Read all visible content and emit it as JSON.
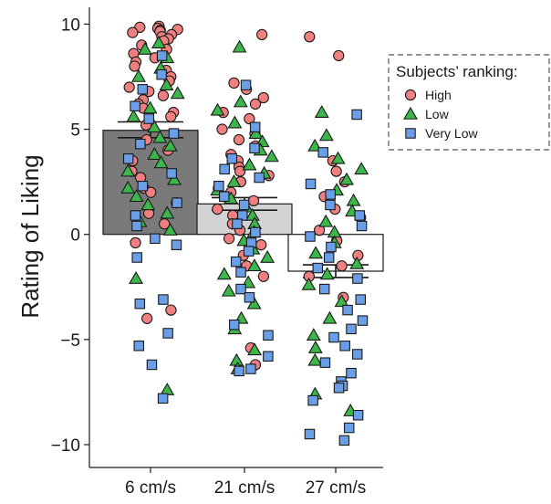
{
  "chart_data": {
    "type": "bar",
    "ylabel": "Rating of Liking",
    "ylim": [
      -11,
      10.8
    ],
    "yticks": [
      10,
      5,
      0,
      -5,
      -10
    ],
    "ytick_labels": [
      "10",
      "5",
      "0",
      "−5",
      "−10"
    ],
    "categories": [
      "6 cm/s",
      "21 cm/s",
      "27 cm/s"
    ],
    "bars": [
      {
        "category": "6 cm/s",
        "mean": 4.95,
        "err_low": 4.6,
        "err_high": 5.35,
        "fill": "#7a7a7a"
      },
      {
        "category": "21 cm/s",
        "mean": 1.45,
        "err_low": 1.15,
        "err_high": 1.75,
        "fill": "#d3d3d3"
      },
      {
        "category": "27 cm/s",
        "mean": -1.75,
        "err_low": -2.05,
        "err_high": -1.45,
        "fill": "#ffffff"
      }
    ],
    "legend": {
      "title": "Subjects’ ranking:",
      "position": "top-right",
      "entries": [
        {
          "label": "High",
          "marker": "circle",
          "color": "#f08080"
        },
        {
          "label": "Low",
          "marker": "triangle",
          "color": "#3cb54a"
        },
        {
          "label": "Very Low",
          "marker": "square",
          "color": "#6a9fe8"
        }
      ]
    },
    "series": [
      {
        "name": "High",
        "marker": "circle",
        "color": "#f08080",
        "points": [
          [
            0,
            9.9
          ],
          [
            0,
            9.85
          ],
          [
            0,
            9.8
          ],
          [
            0,
            9.75
          ],
          [
            0,
            9.7
          ],
          [
            0,
            9.65
          ],
          [
            0,
            9.6
          ],
          [
            0,
            9.5
          ],
          [
            0,
            9.4
          ],
          [
            0,
            9.3
          ],
          [
            0,
            9.2
          ],
          [
            0,
            9.0
          ],
          [
            0,
            8.8
          ],
          [
            0,
            8.6
          ],
          [
            0,
            8.4
          ],
          [
            0,
            8.2
          ],
          [
            0,
            8.0
          ],
          [
            0,
            7.8
          ],
          [
            0,
            7.5
          ],
          [
            0,
            7.3
          ],
          [
            0,
            7.0
          ],
          [
            0,
            6.8
          ],
          [
            0,
            6.6
          ],
          [
            0,
            6.4
          ],
          [
            0,
            6.2
          ],
          [
            0,
            6.0
          ],
          [
            0,
            5.8
          ],
          [
            0,
            5.6
          ],
          [
            0,
            5.2
          ],
          [
            0,
            4.5
          ],
          [
            0,
            4.0
          ],
          [
            0,
            3.5
          ],
          [
            0,
            3.0
          ],
          [
            0,
            2.7
          ],
          [
            0,
            2.2
          ],
          [
            0,
            2.0
          ],
          [
            0,
            1.5
          ],
          [
            0,
            1.0
          ],
          [
            0,
            0.5
          ],
          [
            0,
            -0.4
          ],
          [
            0,
            -4.0
          ],
          [
            0,
            -3.6
          ],
          [
            1,
            9.5
          ],
          [
            1,
            7.2
          ],
          [
            1,
            6.9
          ],
          [
            1,
            6.5
          ],
          [
            1,
            6.2
          ],
          [
            1,
            5.8
          ],
          [
            1,
            5.5
          ],
          [
            1,
            5.0
          ],
          [
            1,
            4.8
          ],
          [
            1,
            4.5
          ],
          [
            1,
            4.2
          ],
          [
            1,
            3.8
          ],
          [
            1,
            3.5
          ],
          [
            1,
            3.2
          ],
          [
            1,
            3.0
          ],
          [
            1,
            2.8
          ],
          [
            1,
            2.5
          ],
          [
            1,
            2.2
          ],
          [
            1,
            2.0
          ],
          [
            1,
            1.8
          ],
          [
            1,
            1.6
          ],
          [
            1,
            1.2
          ],
          [
            1,
            0.9
          ],
          [
            1,
            0.5
          ],
          [
            1,
            0.2
          ],
          [
            1,
            -0.2
          ],
          [
            1,
            -0.5
          ],
          [
            1,
            -1.0
          ],
          [
            1,
            -1.5
          ],
          [
            1,
            -2.0
          ],
          [
            1,
            -5.4
          ],
          [
            1,
            -6.2
          ],
          [
            2,
            9.4
          ],
          [
            2,
            8.5
          ],
          [
            2,
            3.5
          ],
          [
            2,
            3.0
          ],
          [
            2,
            2.5
          ],
          [
            2,
            1.8
          ],
          [
            2,
            1.2
          ],
          [
            2,
            0.8
          ],
          [
            2,
            0.2
          ],
          [
            2,
            -0.3
          ],
          [
            2,
            -1.0
          ],
          [
            2,
            -1.5
          ],
          [
            2,
            -2.0
          ],
          [
            2,
            -3.0
          ]
        ]
      },
      {
        "name": "Low",
        "marker": "triangle",
        "color": "#3cb54a",
        "points": [
          [
            0,
            9.1
          ],
          [
            0,
            8.8
          ],
          [
            0,
            8.4
          ],
          [
            0,
            7.9
          ],
          [
            0,
            7.5
          ],
          [
            0,
            7.1
          ],
          [
            0,
            6.7
          ],
          [
            0,
            6.0
          ],
          [
            0,
            5.6
          ],
          [
            0,
            5.1
          ],
          [
            0,
            4.6
          ],
          [
            0,
            4.2
          ],
          [
            0,
            3.8
          ],
          [
            0,
            3.4
          ],
          [
            0,
            3.0
          ],
          [
            0,
            2.6
          ],
          [
            0,
            2.2
          ],
          [
            0,
            1.8
          ],
          [
            0,
            1.4
          ],
          [
            0,
            1.0
          ],
          [
            0,
            0.6
          ],
          [
            0,
            0.2
          ],
          [
            0,
            -2.1
          ],
          [
            0,
            -7.4
          ],
          [
            1,
            8.9
          ],
          [
            1,
            6.3
          ],
          [
            1,
            5.9
          ],
          [
            1,
            5.3
          ],
          [
            1,
            4.8
          ],
          [
            1,
            4.4
          ],
          [
            1,
            4.0
          ],
          [
            1,
            3.7
          ],
          [
            1,
            3.3
          ],
          [
            1,
            2.9
          ],
          [
            1,
            2.5
          ],
          [
            1,
            2.1
          ],
          [
            1,
            1.7
          ],
          [
            1,
            1.3
          ],
          [
            1,
            0.9
          ],
          [
            1,
            0.5
          ],
          [
            1,
            0.1
          ],
          [
            1,
            -0.3
          ],
          [
            1,
            -0.7
          ],
          [
            1,
            -1.1
          ],
          [
            1,
            -1.5
          ],
          [
            1,
            -1.9
          ],
          [
            1,
            -2.3
          ],
          [
            1,
            -2.7
          ],
          [
            1,
            -3.3
          ],
          [
            1,
            -4.0
          ],
          [
            1,
            -4.5
          ],
          [
            1,
            -5.5
          ],
          [
            1,
            -6.0
          ],
          [
            1,
            -6.4
          ],
          [
            2,
            5.8
          ],
          [
            2,
            4.7
          ],
          [
            2,
            4.2
          ],
          [
            2,
            3.6
          ],
          [
            2,
            3.1
          ],
          [
            2,
            2.6
          ],
          [
            2,
            2.1
          ],
          [
            2,
            1.6
          ],
          [
            2,
            1.1
          ],
          [
            2,
            0.6
          ],
          [
            2,
            0.1
          ],
          [
            2,
            -0.4
          ],
          [
            2,
            -0.9
          ],
          [
            2,
            -1.4
          ],
          [
            2,
            -1.9
          ],
          [
            2,
            -2.4
          ],
          [
            2,
            -3.2
          ],
          [
            2,
            -4.0
          ],
          [
            2,
            -4.8
          ],
          [
            2,
            -5.4
          ],
          [
            2,
            -6.0
          ],
          [
            2,
            -7.6
          ],
          [
            2,
            -8.4
          ]
        ]
      },
      {
        "name": "Very Low",
        "marker": "square",
        "color": "#6a9fe8",
        "points": [
          [
            0,
            8.5
          ],
          [
            0,
            7.6
          ],
          [
            0,
            6.9
          ],
          [
            0,
            6.1
          ],
          [
            0,
            5.5
          ],
          [
            0,
            4.8
          ],
          [
            0,
            4.3
          ],
          [
            0,
            3.6
          ],
          [
            0,
            2.9
          ],
          [
            0,
            2.3
          ],
          [
            0,
            1.5
          ],
          [
            0,
            0.9
          ],
          [
            0,
            0.4
          ],
          [
            0,
            -0.2
          ],
          [
            0,
            -0.5
          ],
          [
            0,
            -1.1
          ],
          [
            0,
            -3.1
          ],
          [
            0,
            -3.3
          ],
          [
            0,
            -4.7
          ],
          [
            0,
            -5.3
          ],
          [
            0,
            -6.2
          ],
          [
            0,
            -7.8
          ],
          [
            1,
            7.1
          ],
          [
            1,
            5.1
          ],
          [
            1,
            4.1
          ],
          [
            1,
            3.6
          ],
          [
            1,
            3.1
          ],
          [
            1,
            2.7
          ],
          [
            1,
            2.3
          ],
          [
            1,
            1.8
          ],
          [
            1,
            1.4
          ],
          [
            1,
            0.9
          ],
          [
            1,
            0.5
          ],
          [
            1,
            0.1
          ],
          [
            1,
            -0.4
          ],
          [
            1,
            -0.8
          ],
          [
            1,
            -1.3
          ],
          [
            1,
            -1.8
          ],
          [
            1,
            -2.6
          ],
          [
            1,
            -3.0
          ],
          [
            1,
            -4.3
          ],
          [
            1,
            -4.8
          ],
          [
            1,
            -5.8
          ],
          [
            1,
            -6.4
          ],
          [
            1,
            -6.5
          ],
          [
            2,
            5.7
          ],
          [
            2,
            3.9
          ],
          [
            2,
            2.4
          ],
          [
            2,
            1.9
          ],
          [
            2,
            1.4
          ],
          [
            2,
            0.9
          ],
          [
            2,
            0.4
          ],
          [
            2,
            -0.1
          ],
          [
            2,
            -0.6
          ],
          [
            2,
            -1.1
          ],
          [
            2,
            -1.6
          ],
          [
            2,
            -2.1
          ],
          [
            2,
            -2.6
          ],
          [
            2,
            -3.1
          ],
          [
            2,
            -3.6
          ],
          [
            2,
            -4.1
          ],
          [
            2,
            -4.5
          ],
          [
            2,
            -4.9
          ],
          [
            2,
            -5.3
          ],
          [
            2,
            -5.7
          ],
          [
            2,
            -6.1
          ],
          [
            2,
            -6.6
          ],
          [
            2,
            -7.0
          ],
          [
            2,
            -7.2
          ],
          [
            2,
            -7.3
          ],
          [
            2,
            -7.9
          ],
          [
            2,
            -8.6
          ],
          [
            2,
            -9.2
          ],
          [
            2,
            -9.5
          ],
          [
            2,
            -9.8
          ]
        ]
      }
    ],
    "colors": {
      "marker_stroke": "#1a1a1a",
      "axis": "#1a1a1a",
      "legend_border": "#555555"
    }
  }
}
